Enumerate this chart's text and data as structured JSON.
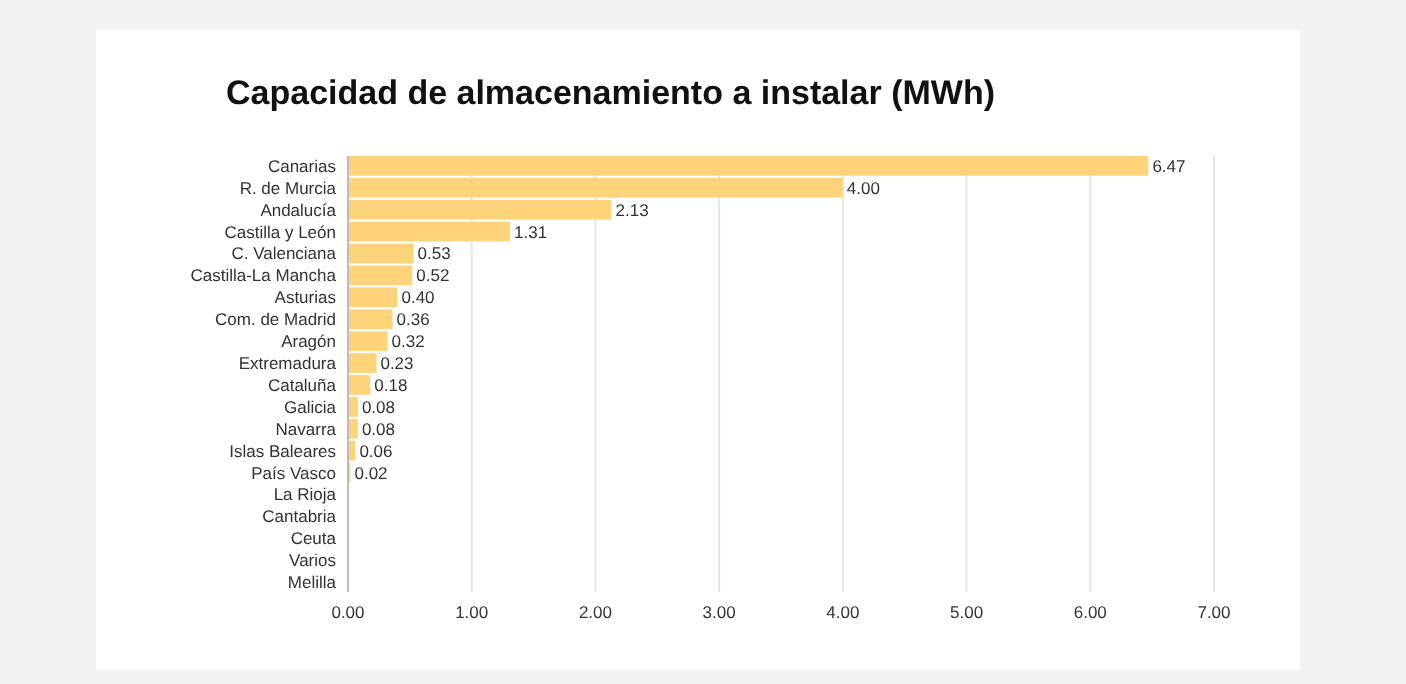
{
  "chart_data": {
    "type": "bar",
    "orientation": "horizontal",
    "title": "Capacidad de almacenamiento a instalar (MWh)",
    "categories": [
      "Canarias",
      "R. de Murcia",
      "Andalucía",
      "Castilla y León",
      "C. Valenciana",
      "Castilla-La Mancha",
      "Asturias",
      "Com. de Madrid",
      "Aragón",
      "Extremadura",
      "Cataluña",
      "Galicia",
      "Navarra",
      "Islas Baleares",
      "País Vasco",
      "La Rioja",
      "Cantabria",
      "Ceuta",
      "Varios",
      "Melilla"
    ],
    "values": [
      6.47,
      4.0,
      2.13,
      1.31,
      0.53,
      0.52,
      0.4,
      0.36,
      0.32,
      0.23,
      0.18,
      0.08,
      0.08,
      0.06,
      0.02,
      null,
      null,
      null,
      null,
      null
    ],
    "value_labels": [
      "6.47",
      "4.00",
      "2.13",
      "1.31",
      "0.53",
      "0.52",
      "0.40",
      "0.36",
      "0.32",
      "0.23",
      "0.18",
      "0.08",
      "0.08",
      "0.06",
      "0.02",
      null,
      null,
      null,
      null,
      null
    ],
    "color": "#fdd47a",
    "xlim": [
      0,
      7
    ],
    "xticks": [
      {
        "value": 0,
        "label": "0.00"
      },
      {
        "value": 1,
        "label": "1.00"
      },
      {
        "value": 2,
        "label": "2.00"
      },
      {
        "value": 3,
        "label": "3.00"
      },
      {
        "value": 4,
        "label": "4.00"
      },
      {
        "value": 5,
        "label": "5.00"
      },
      {
        "value": 6,
        "label": "6.00"
      },
      {
        "value": 7,
        "label": "7.00"
      }
    ],
    "grid": "x"
  }
}
